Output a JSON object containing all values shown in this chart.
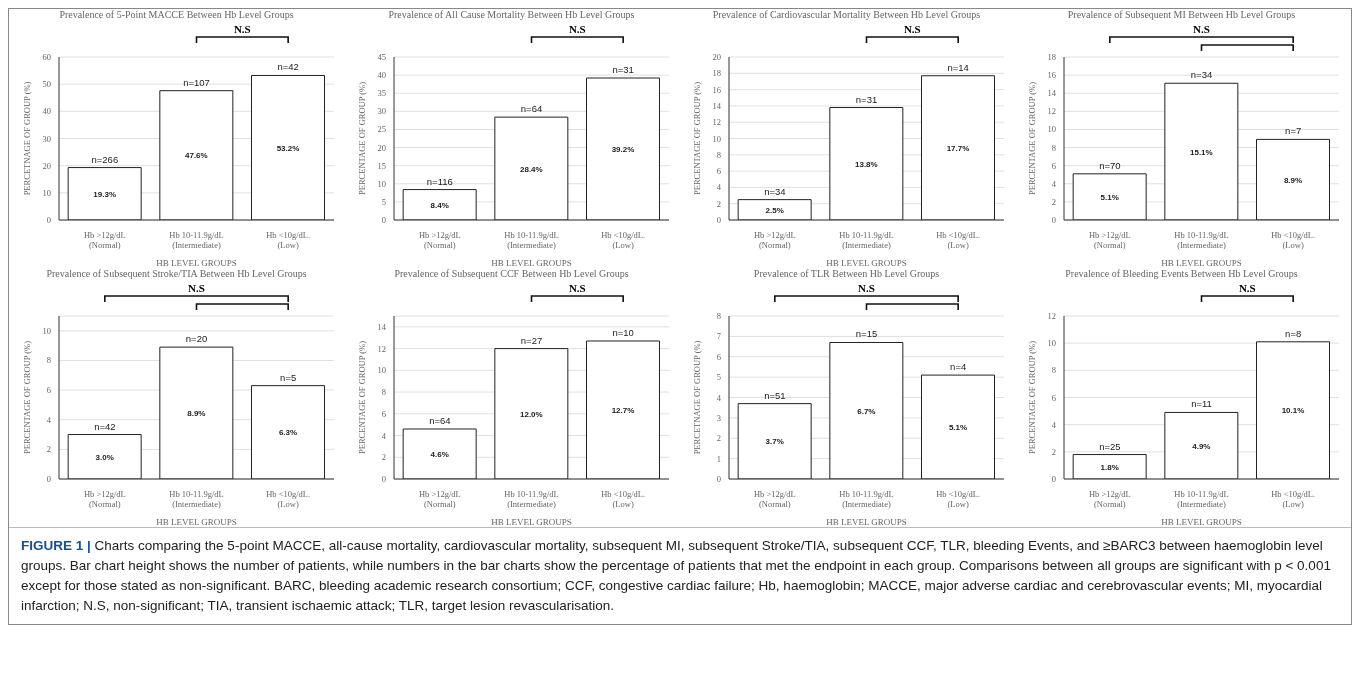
{
  "chart_data": [
    {
      "type": "bar",
      "title": "Prevalence of 5-Point MACCE Between Hb Level Groups",
      "xlabel": "HB LEVEL GROUPS",
      "ylabel": "PERCETNAGE  OF GROUP (%)",
      "categories": [
        "Hb >12g/dL\n(Normal)",
        "Hb 10-11.9g/dL\n(Intermediate)",
        "Hb <10g/dL.\n(Low)"
      ],
      "values": [
        19.3,
        47.6,
        53.2
      ],
      "value_labels": [
        "19.3%",
        "47.6%",
        "53.2%"
      ],
      "color": "#ffffff",
      "ylim": [
        0,
        60
      ],
      "yticks": [
        0,
        10,
        20,
        30,
        40,
        50,
        60
      ],
      "grid": "y",
      "annotations": [
        {
          "text": "n=266",
          "x": "Hb >12g/dL\n(Normal)",
          "y": 19.3
        },
        {
          "text": "n=107",
          "x": "Hb 10-11.9g/dL\n(Intermediate)",
          "y": 47.6
        },
        {
          "text": "n=42",
          "x": "Hb <10g/dL.\n(Low)",
          "y": 53.2
        },
        "N.S"
      ]
    },
    {
      "type": "bar",
      "title": "Prevalence of All Cause Mortality Between Hb Level Groups",
      "xlabel": "HB LEVEL GROUPS",
      "ylabel": "PERCENTAGE  OF GROUP (%)",
      "categories": [
        "Hb >12g/dL\n(Normal)",
        "Hb 10-11.9g/dL\n(Intermediate)",
        "Hb <10g/dL.\n(Low)"
      ],
      "values": [
        8.4,
        28.4,
        39.2
      ],
      "value_labels": [
        "8.4%",
        "28.4%",
        "39.2%"
      ],
      "color": "#ffffff",
      "ylim": [
        0,
        45
      ],
      "yticks": [
        0,
        5,
        10,
        15,
        20,
        25,
        30,
        35,
        40,
        45
      ],
      "grid": "y",
      "annotations": [
        {
          "text": "n=116",
          "x": "Hb >12g/dL\n(Normal)",
          "y": 8.4
        },
        {
          "text": "n=64",
          "x": "Hb 10-11.9g/dL\n(Intermediate)",
          "y": 28.4
        },
        {
          "text": "n=31",
          "x": "Hb <10g/dL.\n(Low)",
          "y": 39.2
        },
        "N.S"
      ]
    },
    {
      "type": "bar",
      "title": "Prevalence of Cardiovascular Mortality Between Hb Level Groups",
      "xlabel": "HB LEVEL GROUPS",
      "ylabel": "PERCENTAGE  OF GROUP (%)",
      "categories": [
        "Hb >12g/dL\n(Normal)",
        "Hb 10-11.9g/dL\n(Intermediate)",
        "Hb <10g/dL.\n(Low)"
      ],
      "values": [
        2.5,
        13.8,
        17.7
      ],
      "value_labels": [
        "2.5%",
        "13.8%",
        "17.7%"
      ],
      "color": "#ffffff",
      "ylim": [
        0,
        20
      ],
      "yticks": [
        0,
        2,
        4,
        6,
        8,
        10,
        12,
        14,
        16,
        18,
        20
      ],
      "grid": "y",
      "annotations": [
        {
          "text": "n=34",
          "x": "Hb >12g/dL\n(Normal)",
          "y": 2.5
        },
        {
          "text": "n=31",
          "x": "Hb 10-11.9g/dL\n(Intermediate)",
          "y": 13.8
        },
        {
          "text": "n=14",
          "x": "Hb <10g/dL.\n(Low)",
          "y": 17.7
        },
        "N.S"
      ]
    },
    {
      "type": "bar",
      "title": "Prevalence of Subsequent MI Between Hb Level Groups",
      "xlabel": "HB LEVEL GROUPS",
      "ylabel": "PERCENTAGE  OF GROUP (%)",
      "categories": [
        "Hb >12g/dL\n(Normal)",
        "Hb 10-11.9g/dL\n(Intermediate)",
        "Hb <10g/dL.\n(Low)"
      ],
      "values": [
        5.1,
        15.1,
        8.9
      ],
      "value_labels": [
        "5.1%",
        "15.1%",
        "8.9%"
      ],
      "color": "#ffffff",
      "ylim": [
        0,
        18
      ],
      "yticks": [
        0,
        2,
        4,
        6,
        8,
        10,
        12,
        14,
        16,
        18
      ],
      "grid": "y",
      "annotations": [
        {
          "text": "n=70",
          "x": "Hb >12g/dL\n(Normal)",
          "y": 5.1
        },
        {
          "text": "n=34",
          "x": "Hb 10-11.9g/dL\n(Intermediate)",
          "y": 15.1
        },
        {
          "text": "n=7",
          "x": "Hb <10g/dL.\n(Low)",
          "y": 8.9
        },
        "N.S"
      ]
    },
    {
      "type": "bar",
      "title": "Prevalence of Subsequent Stroke/TIA Between Hb Level Groups",
      "xlabel": "HB LEVEL GROUPS",
      "ylabel": "PERCENTAGE  OF GROUP (%)",
      "categories": [
        "Hb >12g/dL\n(Normal)",
        "Hb 10-11.9g/dL\n(Intermediate)",
        "Hb <10g/dL.\n(Low)"
      ],
      "values": [
        3.0,
        8.9,
        6.3
      ],
      "value_labels": [
        "3.0%",
        "8.9%",
        "6.3%"
      ],
      "color": "#ffffff",
      "ylim": [
        0,
        11
      ],
      "yticks": [
        0,
        2,
        4,
        6,
        8,
        10
      ],
      "grid": "y",
      "annotations": [
        {
          "text": "n=42",
          "x": "Hb >12g/dL\n(Normal)",
          "y": 3.0
        },
        {
          "text": "n=20",
          "x": "Hb 10-11.9g/dL\n(Intermediate)",
          "y": 8.9
        },
        {
          "text": "n=5",
          "x": "Hb <10g/dL.\n(Low)",
          "y": 6.3
        },
        "N.S"
      ]
    },
    {
      "type": "bar",
      "title": "Prevalence of Subsequent CCF Between Hb Level Groups",
      "xlabel": "HB LEVEL GROUPS",
      "ylabel": "PERCENTAGE  OF GROUP (%)",
      "categories": [
        "Hb >12g/dL\n(Normal)",
        "Hb 10-11.9g/dL\n(Intermediate)",
        "Hb <10g/dL.\n(Low)"
      ],
      "values": [
        4.6,
        12.0,
        12.7
      ],
      "value_labels": [
        "4.6%",
        "12.0%",
        "12.7%"
      ],
      "color": "#ffffff",
      "ylim": [
        0,
        15
      ],
      "yticks": [
        0,
        2,
        4,
        6,
        8,
        10,
        12,
        14
      ],
      "grid": "y",
      "annotations": [
        {
          "text": "n=64",
          "x": "Hb >12g/dL\n(Normal)",
          "y": 4.6
        },
        {
          "text": "n=27",
          "x": "Hb 10-11.9g/dL\n(Intermediate)",
          "y": 12.0
        },
        {
          "text": "n=10",
          "x": "Hb <10g/dL.\n(Low)",
          "y": 12.7
        },
        "N.S"
      ]
    },
    {
      "type": "bar",
      "title": "Prevalence of TLR Between Hb Level Groups",
      "xlabel": "HB LEVEL GROUPS",
      "ylabel": "PERCETNAGE  OF GROUP (%)",
      "categories": [
        "Hb >12g/dL\n(Normal)",
        "Hb 10-11.9g/dL\n(Intermediate)",
        "Hb <10g/dL.\n(Low)"
      ],
      "values": [
        3.7,
        6.7,
        5.1
      ],
      "value_labels": [
        "3.7%",
        "6.7%",
        "5.1%"
      ],
      "color": "#ffffff",
      "ylim": [
        0,
        8
      ],
      "yticks": [
        0,
        1,
        2,
        3,
        4,
        5,
        6,
        7,
        8
      ],
      "grid": "y",
      "annotations": [
        {
          "text": "n=51",
          "x": "Hb >12g/dL\n(Normal)",
          "y": 3.7
        },
        {
          "text": "n=15",
          "x": "Hb 10-11.9g/dL\n(Intermediate)",
          "y": 6.7
        },
        {
          "text": "n=4",
          "x": "Hb <10g/dL.\n(Low)",
          "y": 5.1
        },
        "N.S"
      ]
    },
    {
      "type": "bar",
      "title": "Prevalence of Bleeding Events Between Hb Level Groups",
      "xlabel": "HB LEVEL GROUPS",
      "ylabel": "PERCENTAGE OF GROUP (%)",
      "categories": [
        "Hb >12g/dL\n(Normal)",
        "Hb 10-11.9g/dL\n(Intermediate)",
        "Hb <10g/dL.\n(Low)"
      ],
      "values": [
        1.8,
        4.9,
        10.1
      ],
      "value_labels": [
        "1.8%",
        "4.9%",
        "10.1%"
      ],
      "color": "#ffffff",
      "ylim": [
        0,
        12
      ],
      "yticks": [
        0,
        2,
        4,
        6,
        8,
        10,
        12
      ],
      "grid": "y",
      "annotations": [
        {
          "text": "n=25",
          "x": "Hb >12g/dL\n(Normal)",
          "y": 1.8
        },
        {
          "text": "n=11",
          "x": "Hb 10-11.9g/dL\n(Intermediate)",
          "y": 4.9
        },
        {
          "text": "n=8",
          "x": "Hb <10g/dL.\n(Low)",
          "y": 10.1
        },
        "N.S"
      ]
    },
    {
      "type": "other",
      "title": "FIGURE 1 |",
      "annotations": [
        "Charts comparing the 5-point MACCE, all-cause mortality, cardiovascular mortality, subsequent MI, subsequent Stroke/TIA, subsequent CCF, TLR, bleeding Events, and ≥BARC3 between haemoglobin level groups. Bar chart height shows the number of patients, while numbers in the bar charts show the percentage of patients that met the endpoint in each group. Comparisons between all groups are significant with p < 0.001 except for those stated as non-significant. BARC, bleeding academic research consortium; CCF, congestive cardiac failure; Hb, haemoglobin; MACCE, major adverse cardiac and cerebrovascular events; MI, myocardial infarction; N.S, non-significant; TIA, transient ischaemic attack; TLR, target lesion revascularisation."
      ]
    }
  ]
}
